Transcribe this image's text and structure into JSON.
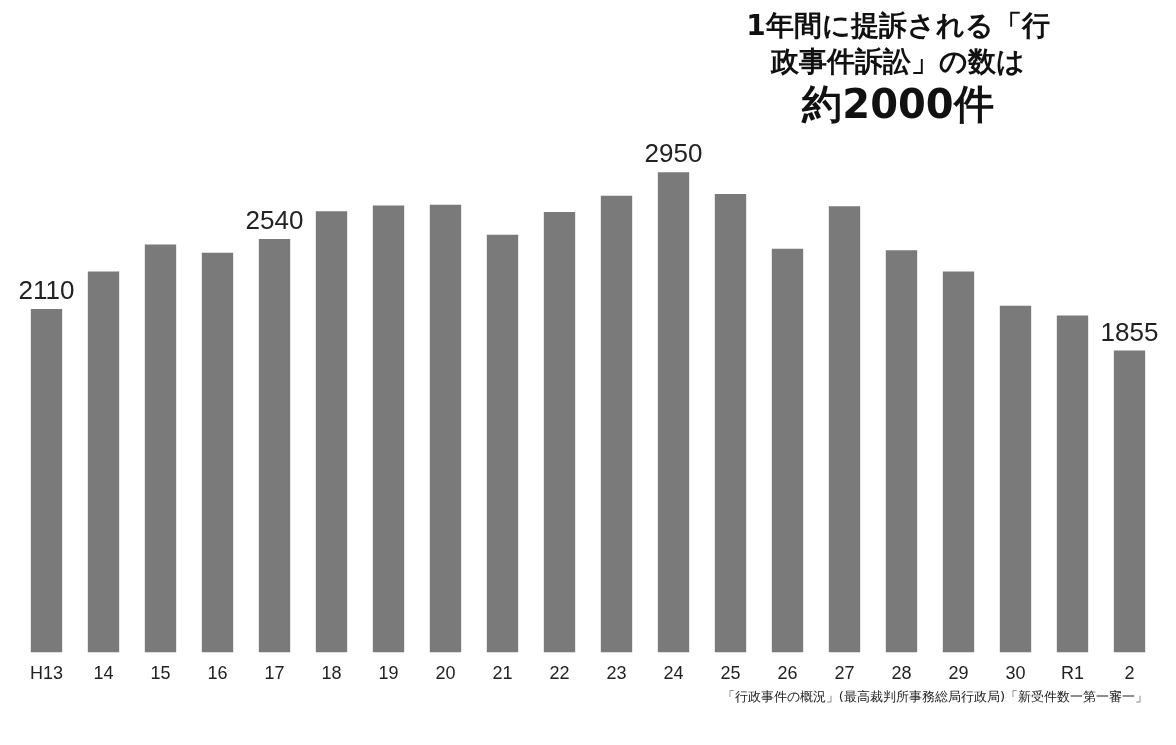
{
  "chart_data": {
    "type": "bar",
    "title": "1年間に提訴される「行政事件訴訟」の数は",
    "subtitle": "約2000件",
    "categories": [
      "H13",
      "14",
      "15",
      "16",
      "17",
      "18",
      "19",
      "20",
      "21",
      "22",
      "23",
      "24",
      "25",
      "26",
      "27",
      "28",
      "29",
      "30",
      "R1",
      "2"
    ],
    "values": [
      2110,
      2340,
      2505,
      2455,
      2540,
      2710,
      2745,
      2750,
      2565,
      2705,
      2805,
      2950,
      2815,
      2480,
      2740,
      2470,
      2340,
      2130,
      2070,
      1855
    ],
    "value_labels": [
      "2110",
      null,
      null,
      null,
      "2540",
      null,
      null,
      null,
      null,
      null,
      null,
      "2950",
      null,
      null,
      null,
      null,
      null,
      null,
      null,
      "1855"
    ],
    "color": "#7a7a7a",
    "annotations": [
      "「行政事件の概況」(最高裁判所事務総局行政局)「新受件数一第一審一」"
    ]
  }
}
